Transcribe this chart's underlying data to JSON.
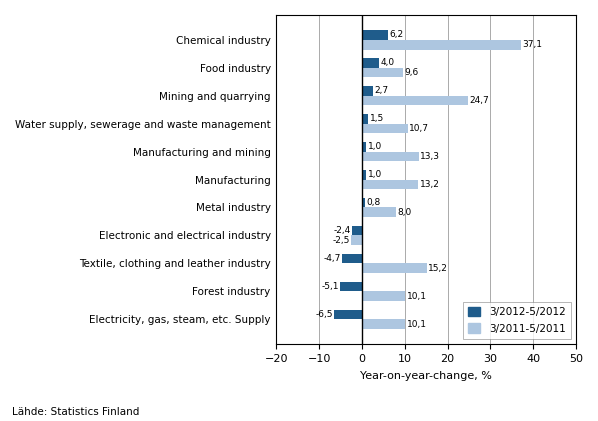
{
  "categories": [
    "Chemical industry",
    "Food industry",
    "Mining and quarrying",
    "Water supply, sewerage and waste management",
    "Manufacturing and mining",
    "Manufacturing",
    "Metal industry",
    "Electronic and electrical industry",
    "Textile, clothing and leather industry",
    "Forest industry",
    "Electricity, gas, steam, etc. Supply"
  ],
  "series_2012": [
    6.2,
    4.0,
    2.7,
    1.5,
    1.0,
    1.0,
    0.8,
    -2.4,
    -4.7,
    -5.1,
    -6.5
  ],
  "series_2011": [
    37.1,
    9.6,
    24.7,
    10.7,
    13.3,
    13.2,
    8.0,
    -2.5,
    15.2,
    10.1,
    10.1
  ],
  "labels_2012": [
    "6,2",
    "4,0",
    "2,7",
    "1,5",
    "1,0",
    "1,0",
    "0,8",
    "-2,4",
    "-4,7",
    "-5,1",
    "-6,5"
  ],
  "labels_2011": [
    "37,1",
    "9,6",
    "24,7",
    "10,7",
    "13,3",
    "13,2",
    "8,0",
    "-2,5",
    "15,2",
    "10,1",
    "10,1"
  ],
  "color_2012": "#1f5c8b",
  "color_2011": "#adc6e0",
  "xlim": [
    -20,
    50
  ],
  "xticks": [
    -20,
    -10,
    0,
    10,
    20,
    30,
    40,
    50
  ],
  "xlabel": "Year-on-year-change, %",
  "legend_2012": "3/2012-5/2012",
  "legend_2011": "3/2011-5/2011",
  "source": "Lähde: Statistics Finland",
  "bar_height": 0.35
}
